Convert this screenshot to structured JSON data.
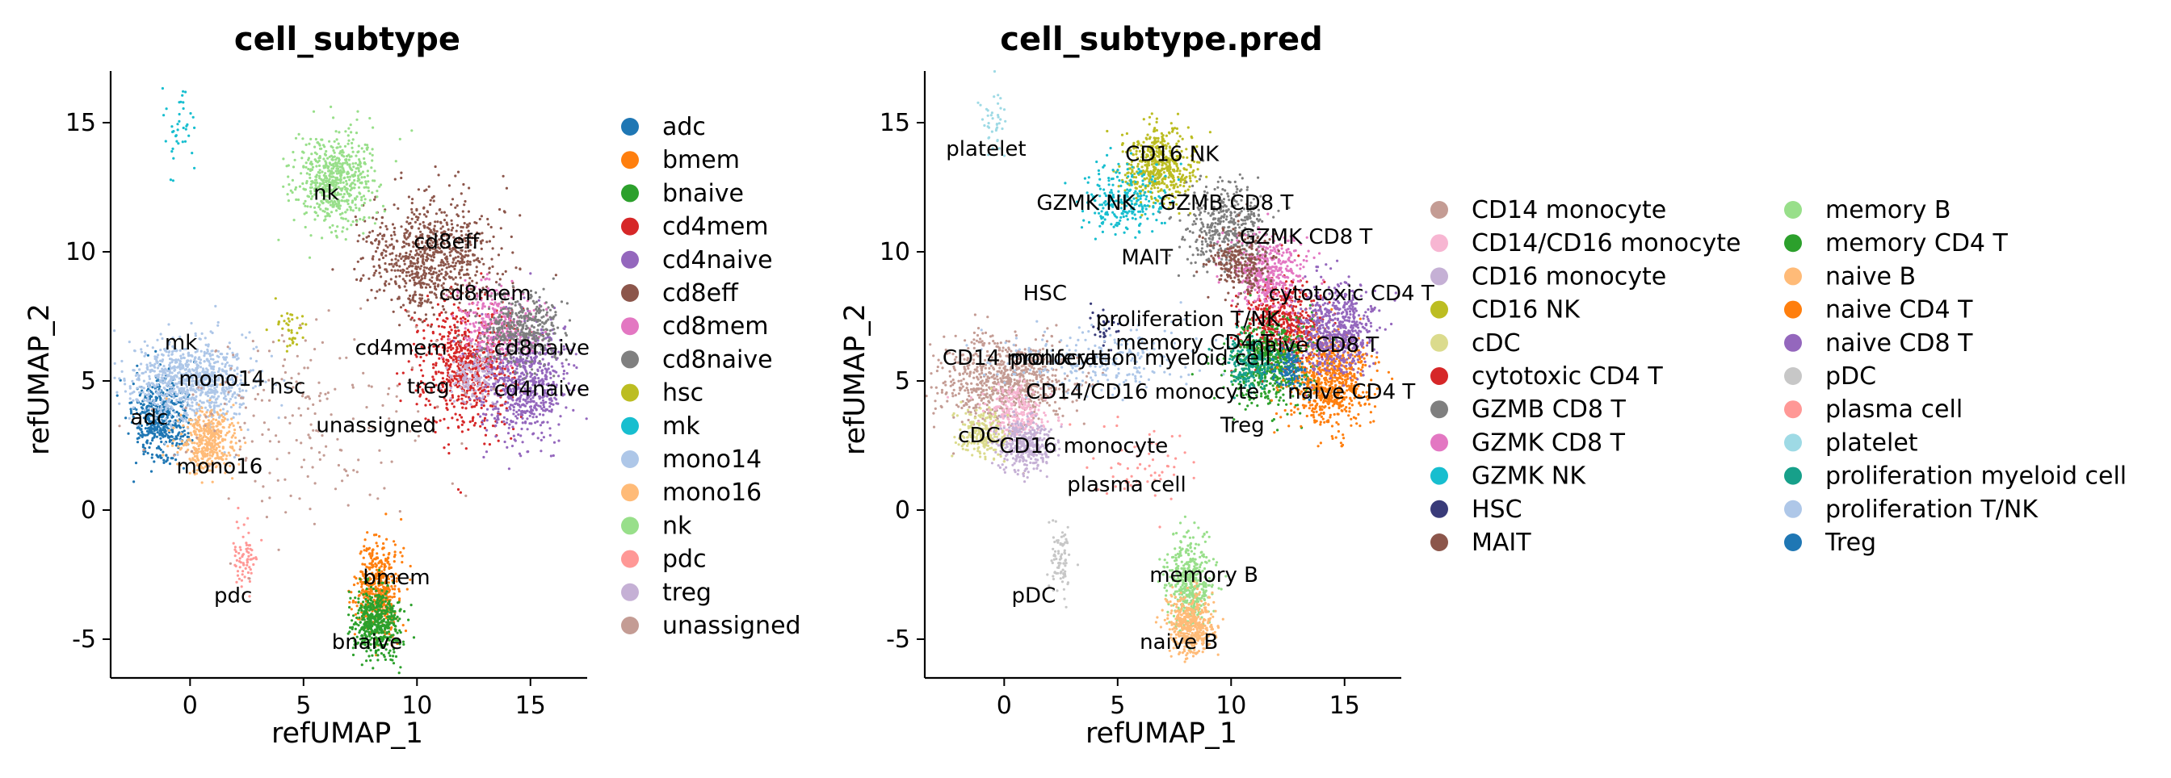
{
  "chart_data": [
    {
      "type": "scatter",
      "title": "cell_subtype",
      "xlabel": "refUMAP_1",
      "ylabel": "refUMAP_2",
      "xlim": [
        -3.5,
        17.5
      ],
      "ylim": [
        -6.5,
        17
      ],
      "xticks": [
        0,
        5,
        10,
        15
      ],
      "yticks": [
        -5,
        0,
        5,
        10,
        15
      ],
      "legend_position": "right",
      "legend_columns": 1,
      "series": [
        {
          "name": "adc",
          "color": "#1f77b4",
          "center": [
            -1.3,
            3.5
          ],
          "spread": [
            0.6,
            0.8
          ],
          "n": 500
        },
        {
          "name": "bmem",
          "color": "#ff7f0e",
          "center": [
            8.3,
            -3.0
          ],
          "spread": [
            0.45,
            0.9
          ],
          "n": 450
        },
        {
          "name": "bnaive",
          "color": "#2ca02c",
          "center": [
            8.2,
            -4.3
          ],
          "spread": [
            0.5,
            0.7
          ],
          "n": 500
        },
        {
          "name": "cd4mem",
          "color": "#d62728",
          "center": [
            12.2,
            5.6
          ],
          "spread": [
            1.0,
            1.2
          ],
          "n": 700
        },
        {
          "name": "cd4naive",
          "color": "#9467bd",
          "center": [
            14.7,
            5.0
          ],
          "spread": [
            1.0,
            1.1
          ],
          "n": 700
        },
        {
          "name": "cd8eff",
          "color": "#8c564b",
          "center": [
            10.6,
            9.8
          ],
          "spread": [
            1.4,
            1.1
          ],
          "n": 800
        },
        {
          "name": "cd8mem",
          "color": "#e377c2",
          "center": [
            13.6,
            7.2
          ],
          "spread": [
            0.9,
            0.8
          ],
          "n": 300
        },
        {
          "name": "cd8naive",
          "color": "#7f7f7f",
          "center": [
            14.6,
            7.0
          ],
          "spread": [
            0.9,
            0.7
          ],
          "n": 400
        },
        {
          "name": "hsc",
          "color": "#bcbd22",
          "center": [
            4.4,
            7.0
          ],
          "spread": [
            0.35,
            0.4
          ],
          "n": 40
        },
        {
          "name": "mk",
          "color": "#17becf",
          "center": [
            -0.5,
            15.0
          ],
          "spread": [
            0.4,
            0.8
          ],
          "n": 40
        },
        {
          "name": "mono14",
          "color": "#aec7e8",
          "center": [
            0.0,
            5.0
          ],
          "spread": [
            1.4,
            0.8
          ],
          "n": 900
        },
        {
          "name": "mono16",
          "color": "#ffbb78",
          "center": [
            0.8,
            2.7
          ],
          "spread": [
            0.6,
            0.6
          ],
          "n": 400
        },
        {
          "name": "nk",
          "color": "#98df8a",
          "center": [
            6.3,
            12.8
          ],
          "spread": [
            0.9,
            0.9
          ],
          "n": 600
        },
        {
          "name": "pdc",
          "color": "#ff9896",
          "center": [
            2.4,
            -2.0
          ],
          "spread": [
            0.25,
            0.7
          ],
          "n": 70
        },
        {
          "name": "treg",
          "color": "#c5b0d5",
          "center": [
            12.4,
            5.2
          ],
          "spread": [
            0.5,
            0.5
          ],
          "n": 150
        },
        {
          "name": "unassigned",
          "color": "#c49c94",
          "center": [
            5.0,
            3.5
          ],
          "spread": [
            3.0,
            2.0
          ],
          "n": 200
        }
      ],
      "annotations": [
        {
          "text": "nk",
          "x": 6.0,
          "y": 12.3
        },
        {
          "text": "cd8eff",
          "x": 11.3,
          "y": 10.4
        },
        {
          "text": "cd8mem",
          "x": 13.0,
          "y": 8.4
        },
        {
          "text": "mk",
          "x": -0.4,
          "y": 6.5
        },
        {
          "text": "cd4mem",
          "x": 9.3,
          "y": 6.3
        },
        {
          "text": "cd8naive",
          "x": 15.5,
          "y": 6.3
        },
        {
          "text": "mono14",
          "x": 1.4,
          "y": 5.1
        },
        {
          "text": "hsc",
          "x": 4.3,
          "y": 4.8
        },
        {
          "text": "treg",
          "x": 10.5,
          "y": 4.8
        },
        {
          "text": "cd4naive",
          "x": 15.5,
          "y": 4.7
        },
        {
          "text": "adc",
          "x": -1.8,
          "y": 3.6
        },
        {
          "text": "unassigned",
          "x": 8.2,
          "y": 3.3
        },
        {
          "text": "mono16",
          "x": 1.3,
          "y": 1.7
        },
        {
          "text": "pdc",
          "x": 1.9,
          "y": -3.3
        },
        {
          "text": "bmem",
          "x": 9.1,
          "y": -2.6
        },
        {
          "text": "bnaive",
          "x": 7.8,
          "y": -5.1
        }
      ]
    },
    {
      "type": "scatter",
      "title": "cell_subtype.pred",
      "xlabel": "refUMAP_1",
      "ylabel": "refUMAP_2",
      "xlim": [
        -3.5,
        17.5
      ],
      "ylim": [
        -6.5,
        17
      ],
      "xticks": [
        0,
        5,
        10,
        15
      ],
      "yticks": [
        -5,
        0,
        5,
        10,
        15
      ],
      "legend_position": "right",
      "legend_columns": 2,
      "series": [
        {
          "name": "CD14 monocyte",
          "color": "#c49c94",
          "center": [
            0.0,
            5.0
          ],
          "spread": [
            1.4,
            0.8
          ],
          "n": 800
        },
        {
          "name": "CD14/CD16 monocyte",
          "color": "#f7b6d2",
          "center": [
            0.5,
            3.8
          ],
          "spread": [
            0.7,
            0.5
          ],
          "n": 250
        },
        {
          "name": "CD16 monocyte",
          "color": "#c5b0d5",
          "center": [
            0.9,
            2.5
          ],
          "spread": [
            0.6,
            0.5
          ],
          "n": 350
        },
        {
          "name": "CD16 NK",
          "color": "#bcbd22",
          "center": [
            6.8,
            13.3
          ],
          "spread": [
            0.8,
            0.7
          ],
          "n": 500
        },
        {
          "name": "cDC",
          "color": "#dbdb8d",
          "center": [
            -1.0,
            3.0
          ],
          "spread": [
            0.5,
            0.5
          ],
          "n": 200
        },
        {
          "name": "cytotoxic CD4 T",
          "color": "#d62728",
          "center": [
            12.2,
            7.2
          ],
          "spread": [
            0.9,
            0.8
          ],
          "n": 600
        },
        {
          "name": "GZMB CD8 T",
          "color": "#7f7f7f",
          "center": [
            9.7,
            11.0
          ],
          "spread": [
            0.9,
            0.8
          ],
          "n": 400
        },
        {
          "name": "GZMK CD8 T",
          "color": "#e377c2",
          "center": [
            11.6,
            9.3
          ],
          "spread": [
            0.8,
            0.7
          ],
          "n": 400
        },
        {
          "name": "GZMK NK",
          "color": "#17becf",
          "center": [
            5.3,
            12.0
          ],
          "spread": [
            0.9,
            0.7
          ],
          "n": 250
        },
        {
          "name": "HSC",
          "color": "#393b79",
          "center": [
            4.5,
            7.2
          ],
          "spread": [
            0.3,
            0.4
          ],
          "n": 30
        },
        {
          "name": "MAIT",
          "color": "#8c564b",
          "center": [
            10.4,
            9.6
          ],
          "spread": [
            0.7,
            0.6
          ],
          "n": 250
        },
        {
          "name": "memory B",
          "color": "#98df8a",
          "center": [
            8.2,
            -2.8
          ],
          "spread": [
            0.5,
            0.9
          ],
          "n": 450
        },
        {
          "name": "memory CD4 T",
          "color": "#2ca02c",
          "center": [
            11.8,
            5.7
          ],
          "spread": [
            0.9,
            0.8
          ],
          "n": 600
        },
        {
          "name": "naive B",
          "color": "#ffbb78",
          "center": [
            8.2,
            -4.4
          ],
          "spread": [
            0.5,
            0.6
          ],
          "n": 450
        },
        {
          "name": "naive CD4 T",
          "color": "#ff7f0e",
          "center": [
            14.4,
            5.0
          ],
          "spread": [
            0.9,
            0.9
          ],
          "n": 700
        },
        {
          "name": "naive CD8 T",
          "color": "#9467bd",
          "center": [
            14.6,
            7.0
          ],
          "spread": [
            0.9,
            0.9
          ],
          "n": 600
        },
        {
          "name": "pDC",
          "color": "#c7c7c7",
          "center": [
            2.5,
            -2.0
          ],
          "spread": [
            0.25,
            0.7
          ],
          "n": 80
        },
        {
          "name": "plasma cell",
          "color": "#ff9896",
          "center": [
            6.5,
            1.8
          ],
          "spread": [
            1.2,
            0.8
          ],
          "n": 60
        },
        {
          "name": "platelet",
          "color": "#9edae5",
          "center": [
            -0.4,
            15.0
          ],
          "spread": [
            0.3,
            0.7
          ],
          "n": 40
        },
        {
          "name": "proliferation myeloid cell",
          "color": "#17a08a",
          "center": [
            10.8,
            5.7
          ],
          "spread": [
            0.6,
            0.5
          ],
          "n": 200
        },
        {
          "name": "proliferation T/NK",
          "color": "#aec7e8",
          "center": [
            4.0,
            5.8
          ],
          "spread": [
            2.2,
            0.6
          ],
          "n": 250
        },
        {
          "name": "Treg",
          "color": "#1f77b4",
          "center": [
            12.6,
            5.4
          ],
          "spread": [
            0.4,
            0.4
          ],
          "n": 100
        }
      ],
      "annotations": [
        {
          "text": "platelet",
          "x": -0.8,
          "y": 14.0
        },
        {
          "text": "CD16 NK",
          "x": 7.4,
          "y": 13.8
        },
        {
          "text": "GZMB CD8 T",
          "x": 9.8,
          "y": 11.9
        },
        {
          "text": "GZMK NK",
          "x": 3.6,
          "y": 11.9
        },
        {
          "text": "GZMK CD8 T",
          "x": 13.3,
          "y": 10.6
        },
        {
          "text": "MAIT",
          "x": 6.3,
          "y": 9.8
        },
        {
          "text": "cytotoxic CD4 T",
          "x": 15.3,
          "y": 8.4
        },
        {
          "text": "HSC",
          "x": 1.8,
          "y": 8.4
        },
        {
          "text": "proliferation T/NK",
          "x": 8.1,
          "y": 7.4
        },
        {
          "text": "memory CD4 T",
          "x": 8.4,
          "y": 6.5
        },
        {
          "text": "naive CD8 T",
          "x": 13.7,
          "y": 6.4
        },
        {
          "text": "CD14 monocyte",
          "x": 1.0,
          "y": 5.9
        },
        {
          "text": "proliferation myeloid cell",
          "x": 6.0,
          "y": 5.9
        },
        {
          "text": "CD14/CD16 monocyte",
          "x": 6.1,
          "y": 4.6
        },
        {
          "text": "naive CD4 T",
          "x": 15.3,
          "y": 4.6
        },
        {
          "text": "cDC",
          "x": -1.1,
          "y": 2.9
        },
        {
          "text": "Treg",
          "x": 10.5,
          "y": 3.3
        },
        {
          "text": "CD16 monocyte",
          "x": 3.5,
          "y": 2.5
        },
        {
          "text": "plasma cell",
          "x": 5.4,
          "y": 1.0
        },
        {
          "text": "memory B",
          "x": 8.8,
          "y": -2.5
        },
        {
          "text": "pDC",
          "x": 1.3,
          "y": -3.3
        },
        {
          "text": "naive B",
          "x": 7.7,
          "y": -5.1
        }
      ]
    }
  ]
}
